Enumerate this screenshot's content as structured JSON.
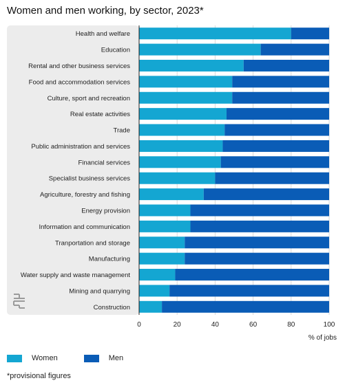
{
  "title": "Women and men working, by sector, 2023*",
  "colors": {
    "women": "#14a6d2",
    "men": "#0a5cb6",
    "panel": "#ececec",
    "grid": "#d9d9d9"
  },
  "chart_data": {
    "type": "bar",
    "orientation": "horizontal",
    "stacked": true,
    "categories": [
      "Health and welfare",
      "Education",
      "Rental and other business services",
      "Food and accommodation services",
      "Culture, sport and recreation",
      "Real estate activities",
      "Trade",
      "Public administration and services",
      "Financial services",
      "Specialist business services",
      "Agriculture, forestry and fishing",
      "Energy provision",
      "Information and communication",
      "Tranportation and storage",
      "Manufacturing",
      "Water supply and waste management",
      "Mining and quarrying",
      "Construction"
    ],
    "series": [
      {
        "name": "Women",
        "values": [
          80,
          64,
          55,
          49,
          49,
          46,
          45,
          44,
          43,
          40,
          34,
          27,
          27,
          24,
          24,
          19,
          16,
          12
        ]
      },
      {
        "name": "Men",
        "values": [
          20,
          36,
          45,
          51,
          51,
          54,
          55,
          56,
          57,
          60,
          66,
          73,
          73,
          76,
          76,
          81,
          84,
          88
        ]
      }
    ],
    "xlabel": "% of jobs",
    "xlim": [
      0,
      100
    ],
    "xticks": [
      "0",
      "20",
      "40",
      "60",
      "80",
      "100"
    ],
    "grid": true,
    "legend_position": "bottom-left"
  },
  "footnote": "*provisional figures"
}
